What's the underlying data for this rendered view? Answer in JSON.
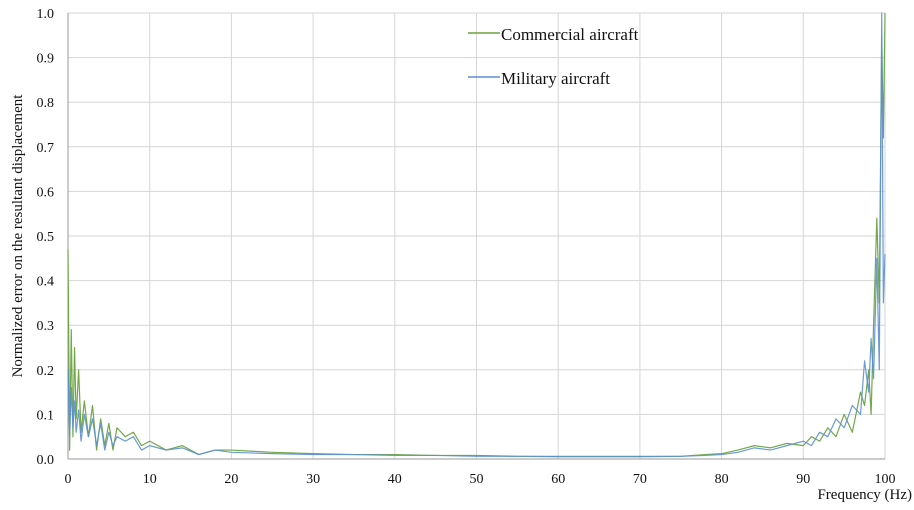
{
  "colors": {
    "commercial": "#6aa33f",
    "military": "#5b8fd1",
    "grid": "#d6d6d6",
    "axis": "#9a9a9a"
  },
  "legend": {
    "commercial_label": "Commercial aircraft",
    "military_label": "Military aircraft"
  },
  "axes": {
    "xlabel": "Frequency (Hz)",
    "ylabel": "Normalized error on the resultant displacement"
  },
  "chart_data": {
    "type": "line",
    "xlim": [
      0,
      100
    ],
    "ylim": [
      0,
      1.0
    ],
    "x_ticks": [
      0,
      10,
      20,
      30,
      40,
      50,
      60,
      70,
      80,
      90,
      100
    ],
    "y_ticks": [
      "0.0",
      "0.1",
      "0.2",
      "0.3",
      "0.4",
      "0.5",
      "0.6",
      "0.7",
      "0.8",
      "0.9",
      "1.0"
    ],
    "grid": true,
    "legend_position": "top-right",
    "xlabel": "Frequency (Hz)",
    "ylabel": "Normalized error on the resultant displacement",
    "series": [
      {
        "name": "Commercial aircraft",
        "color": "#6aa33f",
        "x": [
          0,
          0.2,
          0.4,
          0.6,
          0.8,
          1.0,
          1.3,
          1.6,
          2.0,
          2.5,
          3.0,
          3.5,
          4.0,
          4.5,
          5.0,
          5.5,
          6.0,
          7.0,
          8.0,
          9.0,
          10.0,
          12.0,
          14.0,
          16.0,
          18.0,
          20.0,
          25.0,
          30.0,
          35.0,
          40.0,
          45.0,
          50.0,
          55.0,
          60.0,
          65.0,
          70.0,
          75.0,
          78.0,
          80.0,
          82.0,
          84.0,
          86.0,
          88.0,
          90.0,
          91.0,
          92.0,
          93.0,
          94.0,
          95.0,
          96.0,
          97.0,
          97.5,
          98.0,
          98.3,
          98.6,
          99.0,
          99.3,
          99.6,
          99.8,
          100.0
        ],
        "y": [
          0.47,
          0.02,
          0.29,
          0.05,
          0.25,
          0.09,
          0.2,
          0.06,
          0.13,
          0.05,
          0.12,
          0.02,
          0.09,
          0.03,
          0.08,
          0.02,
          0.07,
          0.05,
          0.06,
          0.03,
          0.04,
          0.02,
          0.03,
          0.01,
          0.02,
          0.02,
          0.015,
          0.012,
          0.01,
          0.01,
          0.008,
          0.008,
          0.006,
          0.006,
          0.006,
          0.006,
          0.006,
          0.01,
          0.012,
          0.02,
          0.03,
          0.025,
          0.035,
          0.03,
          0.05,
          0.04,
          0.07,
          0.05,
          0.1,
          0.06,
          0.15,
          0.12,
          0.2,
          0.1,
          0.3,
          0.54,
          0.35,
          0.95,
          0.72,
          1.0
        ]
      },
      {
        "name": "Military aircraft",
        "color": "#5b8fd1",
        "x": [
          0,
          0.2,
          0.4,
          0.6,
          0.8,
          1.0,
          1.3,
          1.6,
          2.0,
          2.5,
          3.0,
          3.5,
          4.0,
          4.5,
          5.0,
          5.5,
          6.0,
          7.0,
          8.0,
          9.0,
          10.0,
          12.0,
          14.0,
          16.0,
          18.0,
          20.0,
          25.0,
          30.0,
          35.0,
          40.0,
          45.0,
          50.0,
          55.0,
          60.0,
          65.0,
          70.0,
          75.0,
          78.0,
          80.0,
          82.0,
          84.0,
          86.0,
          88.0,
          90.0,
          91.0,
          92.0,
          93.0,
          94.0,
          95.0,
          96.0,
          97.0,
          97.5,
          98.0,
          98.3,
          98.6,
          99.0,
          99.3,
          99.6,
          99.8,
          100.0
        ],
        "y": [
          0.2,
          0.05,
          0.16,
          0.07,
          0.13,
          0.06,
          0.11,
          0.04,
          0.1,
          0.05,
          0.09,
          0.03,
          0.08,
          0.02,
          0.06,
          0.03,
          0.05,
          0.04,
          0.05,
          0.02,
          0.03,
          0.02,
          0.025,
          0.01,
          0.02,
          0.015,
          0.012,
          0.01,
          0.01,
          0.008,
          0.008,
          0.006,
          0.006,
          0.005,
          0.005,
          0.005,
          0.006,
          0.008,
          0.01,
          0.015,
          0.025,
          0.02,
          0.03,
          0.04,
          0.03,
          0.06,
          0.05,
          0.09,
          0.07,
          0.12,
          0.1,
          0.22,
          0.15,
          0.27,
          0.18,
          0.45,
          0.2,
          1.0,
          0.35,
          0.46
        ]
      }
    ]
  }
}
